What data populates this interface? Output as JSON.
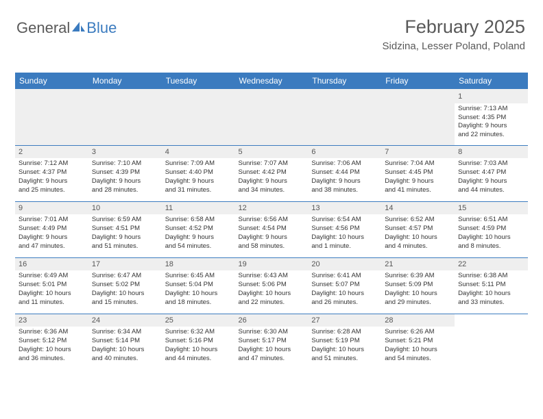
{
  "logo": {
    "text1": "General",
    "text2": "Blue"
  },
  "header": {
    "month": "February 2025",
    "location": "Sidzina, Lesser Poland, Poland"
  },
  "colors": {
    "header_bg": "#3b7bbf",
    "header_text": "#ffffff",
    "daynum_bg": "#efefef",
    "text": "#333333",
    "border": "#3b7bbf"
  },
  "dayNames": [
    "Sunday",
    "Monday",
    "Tuesday",
    "Wednesday",
    "Thursday",
    "Friday",
    "Saturday"
  ],
  "weeks": [
    [
      null,
      null,
      null,
      null,
      null,
      null,
      {
        "n": "1",
        "sr": "Sunrise: 7:13 AM",
        "ss": "Sunset: 4:35 PM",
        "d1": "Daylight: 9 hours",
        "d2": "and 22 minutes."
      }
    ],
    [
      {
        "n": "2",
        "sr": "Sunrise: 7:12 AM",
        "ss": "Sunset: 4:37 PM",
        "d1": "Daylight: 9 hours",
        "d2": "and 25 minutes."
      },
      {
        "n": "3",
        "sr": "Sunrise: 7:10 AM",
        "ss": "Sunset: 4:39 PM",
        "d1": "Daylight: 9 hours",
        "d2": "and 28 minutes."
      },
      {
        "n": "4",
        "sr": "Sunrise: 7:09 AM",
        "ss": "Sunset: 4:40 PM",
        "d1": "Daylight: 9 hours",
        "d2": "and 31 minutes."
      },
      {
        "n": "5",
        "sr": "Sunrise: 7:07 AM",
        "ss": "Sunset: 4:42 PM",
        "d1": "Daylight: 9 hours",
        "d2": "and 34 minutes."
      },
      {
        "n": "6",
        "sr": "Sunrise: 7:06 AM",
        "ss": "Sunset: 4:44 PM",
        "d1": "Daylight: 9 hours",
        "d2": "and 38 minutes."
      },
      {
        "n": "7",
        "sr": "Sunrise: 7:04 AM",
        "ss": "Sunset: 4:45 PM",
        "d1": "Daylight: 9 hours",
        "d2": "and 41 minutes."
      },
      {
        "n": "8",
        "sr": "Sunrise: 7:03 AM",
        "ss": "Sunset: 4:47 PM",
        "d1": "Daylight: 9 hours",
        "d2": "and 44 minutes."
      }
    ],
    [
      {
        "n": "9",
        "sr": "Sunrise: 7:01 AM",
        "ss": "Sunset: 4:49 PM",
        "d1": "Daylight: 9 hours",
        "d2": "and 47 minutes."
      },
      {
        "n": "10",
        "sr": "Sunrise: 6:59 AM",
        "ss": "Sunset: 4:51 PM",
        "d1": "Daylight: 9 hours",
        "d2": "and 51 minutes."
      },
      {
        "n": "11",
        "sr": "Sunrise: 6:58 AM",
        "ss": "Sunset: 4:52 PM",
        "d1": "Daylight: 9 hours",
        "d2": "and 54 minutes."
      },
      {
        "n": "12",
        "sr": "Sunrise: 6:56 AM",
        "ss": "Sunset: 4:54 PM",
        "d1": "Daylight: 9 hours",
        "d2": "and 58 minutes."
      },
      {
        "n": "13",
        "sr": "Sunrise: 6:54 AM",
        "ss": "Sunset: 4:56 PM",
        "d1": "Daylight: 10 hours",
        "d2": "and 1 minute."
      },
      {
        "n": "14",
        "sr": "Sunrise: 6:52 AM",
        "ss": "Sunset: 4:57 PM",
        "d1": "Daylight: 10 hours",
        "d2": "and 4 minutes."
      },
      {
        "n": "15",
        "sr": "Sunrise: 6:51 AM",
        "ss": "Sunset: 4:59 PM",
        "d1": "Daylight: 10 hours",
        "d2": "and 8 minutes."
      }
    ],
    [
      {
        "n": "16",
        "sr": "Sunrise: 6:49 AM",
        "ss": "Sunset: 5:01 PM",
        "d1": "Daylight: 10 hours",
        "d2": "and 11 minutes."
      },
      {
        "n": "17",
        "sr": "Sunrise: 6:47 AM",
        "ss": "Sunset: 5:02 PM",
        "d1": "Daylight: 10 hours",
        "d2": "and 15 minutes."
      },
      {
        "n": "18",
        "sr": "Sunrise: 6:45 AM",
        "ss": "Sunset: 5:04 PM",
        "d1": "Daylight: 10 hours",
        "d2": "and 18 minutes."
      },
      {
        "n": "19",
        "sr": "Sunrise: 6:43 AM",
        "ss": "Sunset: 5:06 PM",
        "d1": "Daylight: 10 hours",
        "d2": "and 22 minutes."
      },
      {
        "n": "20",
        "sr": "Sunrise: 6:41 AM",
        "ss": "Sunset: 5:07 PM",
        "d1": "Daylight: 10 hours",
        "d2": "and 26 minutes."
      },
      {
        "n": "21",
        "sr": "Sunrise: 6:39 AM",
        "ss": "Sunset: 5:09 PM",
        "d1": "Daylight: 10 hours",
        "d2": "and 29 minutes."
      },
      {
        "n": "22",
        "sr": "Sunrise: 6:38 AM",
        "ss": "Sunset: 5:11 PM",
        "d1": "Daylight: 10 hours",
        "d2": "and 33 minutes."
      }
    ],
    [
      {
        "n": "23",
        "sr": "Sunrise: 6:36 AM",
        "ss": "Sunset: 5:12 PM",
        "d1": "Daylight: 10 hours",
        "d2": "and 36 minutes."
      },
      {
        "n": "24",
        "sr": "Sunrise: 6:34 AM",
        "ss": "Sunset: 5:14 PM",
        "d1": "Daylight: 10 hours",
        "d2": "and 40 minutes."
      },
      {
        "n": "25",
        "sr": "Sunrise: 6:32 AM",
        "ss": "Sunset: 5:16 PM",
        "d1": "Daylight: 10 hours",
        "d2": "and 44 minutes."
      },
      {
        "n": "26",
        "sr": "Sunrise: 6:30 AM",
        "ss": "Sunset: 5:17 PM",
        "d1": "Daylight: 10 hours",
        "d2": "and 47 minutes."
      },
      {
        "n": "27",
        "sr": "Sunrise: 6:28 AM",
        "ss": "Sunset: 5:19 PM",
        "d1": "Daylight: 10 hours",
        "d2": "and 51 minutes."
      },
      {
        "n": "28",
        "sr": "Sunrise: 6:26 AM",
        "ss": "Sunset: 5:21 PM",
        "d1": "Daylight: 10 hours",
        "d2": "and 54 minutes."
      },
      null
    ]
  ]
}
